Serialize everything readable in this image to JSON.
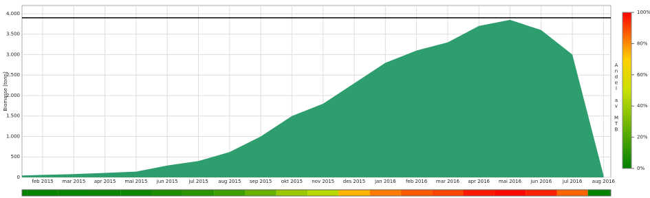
{
  "chart_data": {
    "type": "area",
    "y_label": "Biomasse [tonn]",
    "x": [
      "2015-01",
      "2015-02",
      "2015-03",
      "2015-04",
      "2015-05",
      "2015-06",
      "2015-07",
      "2015-08",
      "2015-09",
      "2015-10",
      "2015-11",
      "2015-12",
      "2016-01",
      "2016-02",
      "2016-03",
      "2016-04",
      "2016-05",
      "2016-06",
      "2016-07",
      "2016-08"
    ],
    "series": [
      {
        "name": "Biomasse",
        "color": "#2e9e6e",
        "values": [
          40,
          60,
          80,
          110,
          140,
          290,
          400,
          620,
          1000,
          1500,
          1800,
          2300,
          2800,
          3100,
          3300,
          3700,
          3850,
          3600,
          3000,
          50
        ]
      }
    ],
    "mtb": 3900,
    "mtb_color": "#000000",
    "ylim": [
      0,
      4200
    ],
    "yticks": [
      0,
      {
        "value": 500,
        "label": "500"
      },
      {
        "value": 1000,
        "label": "1.000"
      },
      {
        "value": 1500,
        "label": "1.500"
      },
      {
        "value": 2000,
        "label": "2.000"
      },
      {
        "value": 2500,
        "label": "2.500"
      },
      {
        "value": 3000,
        "label": "3.000"
      },
      {
        "value": 3500,
        "label": "3.500"
      },
      {
        "value": 4000,
        "label": "4.000"
      }
    ],
    "xticks": [
      {
        "value": "2015-02",
        "label": "feb 2015"
      },
      {
        "value": "2015-03",
        "label": "mar 2015"
      },
      {
        "value": "2015-04",
        "label": "apr 2015"
      },
      {
        "value": "2015-05",
        "label": "mai 2015"
      },
      {
        "value": "2015-06",
        "label": "jun 2015"
      },
      {
        "value": "2015-07",
        "label": "jul 2015"
      },
      {
        "value": "2015-08",
        "label": "aug 2015"
      },
      {
        "value": "2015-09",
        "label": "sep 2015"
      },
      {
        "value": "2015-10",
        "label": "okt 2015"
      },
      {
        "value": "2015-11",
        "label": "nov 2015"
      },
      {
        "value": "2015-12",
        "label": "des 2015"
      },
      {
        "value": "2016-01",
        "label": "jan 2016"
      },
      {
        "value": "2016-02",
        "label": "feb 2016"
      },
      {
        "value": "2016-03",
        "label": "mar 2016"
      },
      {
        "value": "2016-04",
        "label": "apr 2016"
      },
      {
        "value": "2016-05",
        "label": "mai 2016"
      },
      {
        "value": "2016-06",
        "label": "jun 2016"
      },
      {
        "value": "2016-07",
        "label": "jul 2016"
      },
      {
        "value": "2016-08",
        "label": "aug 2016"
      }
    ],
    "grid": true,
    "colorbar": {
      "title": "Andel av MTB",
      "lim": [
        0,
        100
      ],
      "ticks": [
        {
          "value": 0,
          "label": "0%"
        },
        {
          "value": 20,
          "label": "20%"
        },
        {
          "value": 40,
          "label": "40%"
        },
        {
          "value": 60,
          "label": "60%"
        },
        {
          "value": 80,
          "label": "80%"
        },
        {
          "value": 100,
          "label": "100%"
        }
      ]
    }
  }
}
